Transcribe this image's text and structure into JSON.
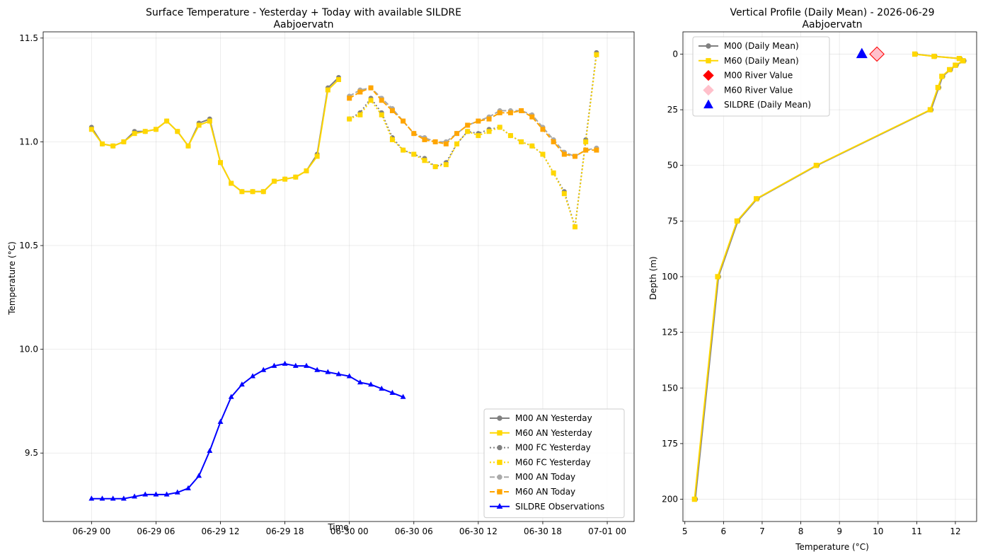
{
  "chart_data": [
    {
      "type": "line",
      "title": "Surface Temperature - Yesterday + Today with available SILDRE",
      "subtitle": "Aabjoervatn",
      "xlabel": "Time",
      "ylabel": "Temperature (°C)",
      "x_unit": "hours since 06-29 00",
      "xlim": [
        -4.5,
        50.5
      ],
      "ylim": [
        9.17,
        11.53
      ],
      "grid": true,
      "legend_position": "lower-right",
      "x_ticks": [
        {
          "v": 0,
          "label": "06-29 00"
        },
        {
          "v": 6,
          "label": "06-29 06"
        },
        {
          "v": 12,
          "label": "06-29 12"
        },
        {
          "v": 18,
          "label": "06-29 18"
        },
        {
          "v": 24,
          "label": "06-30 00"
        },
        {
          "v": 30,
          "label": "06-30 06"
        },
        {
          "v": 36,
          "label": "06-30 12"
        },
        {
          "v": 42,
          "label": "06-30 18"
        },
        {
          "v": 48,
          "label": "07-01 00"
        }
      ],
      "y_ticks": [
        {
          "v": 9.5,
          "label": "9.5"
        },
        {
          "v": 10.0,
          "label": "10.0"
        },
        {
          "v": 10.5,
          "label": "10.5"
        },
        {
          "v": 11.0,
          "label": "11.0"
        },
        {
          "v": 11.5,
          "label": "11.5"
        }
      ],
      "series": [
        {
          "name": "M00 AN Yesterday",
          "color": "#808080",
          "dash": "solid",
          "marker": "circle",
          "width": 2,
          "x": [
            0,
            1,
            2,
            3,
            4,
            5,
            6,
            7,
            8,
            9,
            10,
            11,
            12,
            13,
            14,
            15,
            16,
            17,
            18,
            19,
            20,
            21,
            22,
            23
          ],
          "y": [
            11.07,
            10.99,
            10.98,
            11.0,
            11.05,
            11.05,
            11.06,
            11.1,
            11.05,
            10.98,
            11.09,
            11.11,
            10.9,
            10.8,
            10.76,
            10.76,
            10.76,
            10.81,
            10.82,
            10.83,
            10.86,
            10.94,
            11.26,
            11.31
          ]
        },
        {
          "name": "M60 AN Yesterday",
          "color": "#ffd700",
          "dash": "solid",
          "marker": "square",
          "width": 2,
          "x": [
            0,
            1,
            2,
            3,
            4,
            5,
            6,
            7,
            8,
            9,
            10,
            11,
            12,
            13,
            14,
            15,
            16,
            17,
            18,
            19,
            20,
            21,
            22,
            23
          ],
          "y": [
            11.06,
            10.99,
            10.98,
            11.0,
            11.04,
            11.05,
            11.06,
            11.1,
            11.05,
            10.98,
            11.08,
            11.1,
            10.9,
            10.8,
            10.76,
            10.76,
            10.76,
            10.81,
            10.82,
            10.83,
            10.86,
            10.93,
            11.25,
            11.3
          ]
        },
        {
          "name": "M00 FC Yesterday",
          "color": "#808080",
          "dash": "dotted",
          "marker": "circle",
          "width": 2,
          "x": [
            24,
            25,
            26,
            27,
            28,
            29,
            30,
            31,
            32,
            33,
            34,
            35,
            36,
            37,
            38,
            39,
            40,
            41,
            42,
            43,
            44,
            45,
            46,
            47
          ],
          "y": [
            11.11,
            11.14,
            11.21,
            11.14,
            11.02,
            10.96,
            10.94,
            10.92,
            10.88,
            10.9,
            10.99,
            11.05,
            11.04,
            11.06,
            11.07,
            11.03,
            11.0,
            10.98,
            10.94,
            10.85,
            10.76,
            10.59,
            11.01,
            11.43
          ]
        },
        {
          "name": "M60 FC Yesterday",
          "color": "#ffd700",
          "dash": "dotted",
          "marker": "square",
          "width": 2,
          "x": [
            24,
            25,
            26,
            27,
            28,
            29,
            30,
            31,
            32,
            33,
            34,
            35,
            36,
            37,
            38,
            39,
            40,
            41,
            42,
            43,
            44,
            45,
            46,
            47
          ],
          "y": [
            11.11,
            11.13,
            11.2,
            11.13,
            11.01,
            10.96,
            10.94,
            10.91,
            10.88,
            10.89,
            10.99,
            11.05,
            11.03,
            11.05,
            11.07,
            11.03,
            11.0,
            10.98,
            10.94,
            10.85,
            10.75,
            10.59,
            11.0,
            11.42
          ]
        },
        {
          "name": "M00 AN Today",
          "color": "#a9a9a9",
          "dash": "dashed",
          "marker": "circle",
          "width": 2,
          "x": [
            24,
            25,
            26,
            27,
            28,
            29,
            30,
            31,
            32,
            33,
            34,
            35,
            36,
            37,
            38,
            39,
            40,
            41,
            42,
            43,
            44,
            45,
            46,
            47
          ],
          "y": [
            11.22,
            11.25,
            11.26,
            11.21,
            11.16,
            11.1,
            11.04,
            11.02,
            11.0,
            11.0,
            11.04,
            11.08,
            11.1,
            11.12,
            11.15,
            11.15,
            11.15,
            11.13,
            11.07,
            11.01,
            10.95,
            10.93,
            10.96,
            10.97
          ]
        },
        {
          "name": "M60 AN Today",
          "color": "#ffa500",
          "dash": "dashed",
          "marker": "square",
          "width": 2,
          "x": [
            24,
            25,
            26,
            27,
            28,
            29,
            30,
            31,
            32,
            33,
            34,
            35,
            36,
            37,
            38,
            39,
            40,
            41,
            42,
            43,
            44,
            45,
            46,
            47
          ],
          "y": [
            11.21,
            11.24,
            11.26,
            11.2,
            11.15,
            11.1,
            11.04,
            11.01,
            11.0,
            10.99,
            11.04,
            11.08,
            11.1,
            11.11,
            11.14,
            11.14,
            11.15,
            11.12,
            11.06,
            11.0,
            10.94,
            10.93,
            10.96,
            10.96
          ]
        },
        {
          "name": "SILDRE Observations",
          "color": "#0000ff",
          "dash": "solid",
          "marker": "triangle",
          "width": 2,
          "x": [
            0,
            1,
            2,
            3,
            4,
            5,
            6,
            7,
            8,
            9,
            10,
            11,
            12,
            13,
            14,
            15,
            16,
            17,
            18,
            19,
            20,
            21,
            22,
            23,
            24,
            25,
            26,
            27,
            28,
            29
          ],
          "y": [
            9.28,
            9.28,
            9.28,
            9.28,
            9.29,
            9.3,
            9.3,
            9.3,
            9.31,
            9.33,
            9.39,
            9.51,
            9.65,
            9.77,
            9.83,
            9.87,
            9.9,
            9.92,
            9.93,
            9.92,
            9.92,
            9.9,
            9.89,
            9.88,
            9.87,
            9.84,
            9.83,
            9.81,
            9.79,
            9.77
          ]
        }
      ]
    },
    {
      "type": "line",
      "title": "Vertical Profile (Daily Mean) - 2026-06-29",
      "subtitle": "Aabjoervatn",
      "xlabel": "Temperature (°C)",
      "ylabel": "Depth (m)",
      "xlim": [
        4.95,
        12.55
      ],
      "ylim": [
        -10,
        210
      ],
      "y_inverted": true,
      "grid": true,
      "legend_position": "top-left",
      "x_ticks": [
        {
          "v": 5,
          "label": "5"
        },
        {
          "v": 6,
          "label": "6"
        },
        {
          "v": 7,
          "label": "7"
        },
        {
          "v": 8,
          "label": "8"
        },
        {
          "v": 9,
          "label": "9"
        },
        {
          "v": 10,
          "label": "10"
        },
        {
          "v": 11,
          "label": "11"
        },
        {
          "v": 12,
          "label": "12"
        }
      ],
      "y_ticks": [
        {
          "v": 0,
          "label": "0"
        },
        {
          "v": 25,
          "label": "25"
        },
        {
          "v": 50,
          "label": "50"
        },
        {
          "v": 75,
          "label": "75"
        },
        {
          "v": 100,
          "label": "100"
        },
        {
          "v": 125,
          "label": "125"
        },
        {
          "v": 150,
          "label": "150"
        },
        {
          "v": 175,
          "label": "175"
        },
        {
          "v": 200,
          "label": "200"
        }
      ],
      "series": [
        {
          "name": "M00 (Daily Mean)",
          "color": "#808080",
          "marker": "circle",
          "kind": "line",
          "x": [
            10.97,
            11.47,
            12.12,
            12.22,
            12.02,
            11.87,
            11.67,
            11.57,
            11.37,
            8.42,
            6.87,
            6.37,
            5.87,
            5.27
          ],
          "y": [
            0,
            1,
            2,
            3,
            5,
            7,
            10,
            15,
            25,
            50,
            65,
            75,
            100,
            200
          ]
        },
        {
          "name": "M60 (Daily Mean)",
          "color": "#ffd700",
          "marker": "square",
          "kind": "line",
          "x": [
            10.95,
            11.45,
            12.1,
            12.2,
            12.0,
            11.85,
            11.65,
            11.55,
            11.35,
            8.4,
            6.85,
            6.35,
            5.85,
            5.25
          ],
          "y": [
            0,
            1,
            2,
            3,
            5,
            7,
            10,
            15,
            25,
            50,
            65,
            75,
            100,
            200
          ]
        },
        {
          "name": "M00 River Value",
          "color": "#ff0000",
          "marker": "diamond",
          "kind": "point",
          "x": [
            9.97
          ],
          "y": [
            0
          ]
        },
        {
          "name": "M60 River Value",
          "color": "#ffc0cb",
          "marker": "diamond",
          "kind": "point",
          "x": [
            9.97
          ],
          "y": [
            0
          ]
        },
        {
          "name": "SILDRE (Daily Mean)",
          "color": "#0000ff",
          "marker": "triangle",
          "kind": "point",
          "x": [
            9.58
          ],
          "y": [
            0
          ]
        }
      ]
    }
  ]
}
